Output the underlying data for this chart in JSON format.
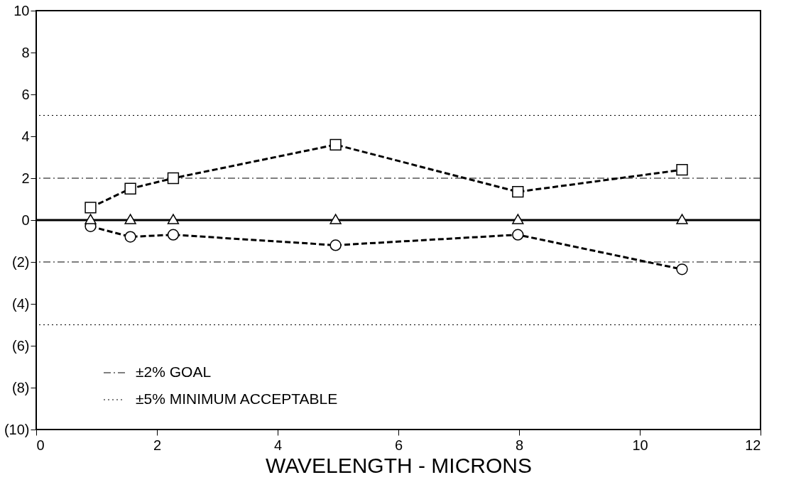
{
  "chart_data": {
    "type": "line",
    "xlabel": "WAVELENGTH - MICRONS",
    "x": [
      0.9,
      1.56,
      2.27,
      4.96,
      7.98,
      10.7
    ],
    "series": [
      {
        "color": "#000000",
        "marker": "square",
        "line_style": "dashed",
        "values": [
          0.6,
          1.5,
          2.0,
          3.6,
          1.35,
          2.4
        ]
      },
      {
        "color": "#000000",
        "marker": "circle",
        "line_style": "dashed",
        "values": [
          -0.3,
          -0.8,
          -0.7,
          -1.2,
          -0.7,
          -2.35
        ]
      },
      {
        "type": "scatter",
        "color": "#000000",
        "marker": "triangle",
        "values": [
          0.05,
          0.05,
          0.05,
          0.05,
          0.05,
          0.05
        ]
      }
    ],
    "xlim": [
      0,
      12
    ],
    "xticks": [
      0,
      2,
      4,
      6,
      8,
      10,
      12
    ],
    "ylim": [
      -10,
      10
    ],
    "yticks": [
      {
        "value": -10,
        "label": "(10)"
      },
      {
        "value": -8,
        "label": "(8)"
      },
      {
        "value": -6,
        "label": "(6)"
      },
      {
        "value": -4,
        "label": "(4)"
      },
      {
        "value": -2,
        "label": "(2)"
      },
      0,
      2,
      4,
      6,
      8,
      10
    ],
    "ref_lines": [
      {
        "axis": "y",
        "value": 0,
        "line_style": "solid",
        "color": "#000000",
        "label": null
      },
      {
        "axis": "y",
        "value": 2,
        "line_style": "dashdot",
        "color": "#000000",
        "label": "±2% GOAL"
      },
      {
        "axis": "y",
        "value": -2,
        "line_style": "dashdot",
        "color": "#000000",
        "label": null
      },
      {
        "axis": "y",
        "value": 5,
        "line_style": "dotted",
        "color": "#000000",
        "label": "±5% MINIMUM ACCEPTABLE"
      },
      {
        "axis": "y",
        "value": -5,
        "line_style": "dotted",
        "color": "#000000",
        "label": null
      }
    ],
    "legend": "bottom left",
    "grid": false
  }
}
